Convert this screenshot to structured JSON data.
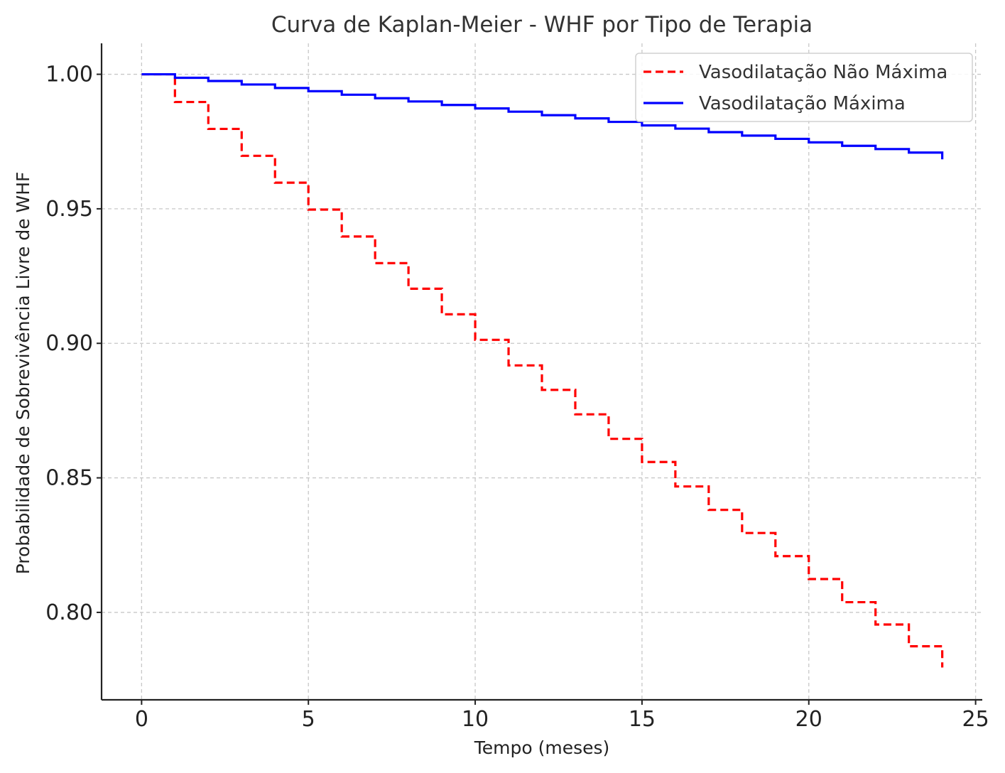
{
  "chart_data": {
    "type": "line",
    "step": "post",
    "title": "Curva de Kaplan-Meier - WHF por Tipo de Terapia",
    "xlabel": "Tempo (meses)",
    "ylabel": "Probabilidade de Sobrevivência Livre de WHF",
    "xlim": [
      -1.2,
      25.2
    ],
    "ylim": [
      0.7675,
      1.0115
    ],
    "xticks": [
      0,
      5,
      10,
      15,
      20,
      25
    ],
    "yticks": [
      0.8,
      0.85,
      0.9,
      0.95,
      1.0
    ],
    "ytick_labels": [
      "0.80",
      "0.85",
      "0.90",
      "0.95",
      "1.00"
    ],
    "grid": true,
    "legend_position": "top-right",
    "x": [
      0,
      1,
      2,
      3,
      4,
      5,
      6,
      7,
      8,
      9,
      10,
      11,
      12,
      13,
      14,
      15,
      16,
      17,
      18,
      19,
      20,
      21,
      22,
      23,
      24
    ],
    "series": [
      {
        "name": "Vasodilatação Não Máxima",
        "color": "#ff0000",
        "line_style": "dashed",
        "values": [
          1.0,
          0.9897,
          0.9797,
          0.9697,
          0.9597,
          0.9497,
          0.9397,
          0.9298,
          0.9203,
          0.9108,
          0.9013,
          0.8918,
          0.8827,
          0.8736,
          0.8645,
          0.8559,
          0.8468,
          0.8381,
          0.8295,
          0.8209,
          0.8124,
          0.8038,
          0.7955,
          0.7874,
          0.7795
        ]
      },
      {
        "name": "Vasodilatação Máxima",
        "color": "#0000ff",
        "line_style": "solid",
        "values": [
          1.0,
          0.9987,
          0.9975,
          0.9962,
          0.9949,
          0.9937,
          0.9924,
          0.9911,
          0.9899,
          0.9886,
          0.9873,
          0.9861,
          0.9848,
          0.9836,
          0.9823,
          0.981,
          0.9798,
          0.9785,
          0.9772,
          0.976,
          0.9747,
          0.9734,
          0.9722,
          0.9709,
          0.9684
        ]
      }
    ]
  }
}
